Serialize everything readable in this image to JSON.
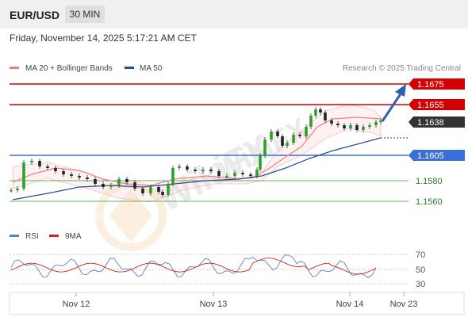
{
  "header": {
    "symbol": "EUR/USD",
    "timeframe": "30 MIN"
  },
  "datetime": "Friday, November 14, 2025 5:17:21 AM CET",
  "legend": {
    "ma20_label": "MA 20 + Bollinger Bands",
    "ma50_label": "MA 50",
    "credit": "Research © 2025 Trading Central"
  },
  "rsi_legend": {
    "rsi_label": "RSI",
    "ma_label": "9MA"
  },
  "colors": {
    "resistance": "#d40000",
    "support_blue": "#3a6fd8",
    "support_green": "#2ca02c",
    "current": "#333333",
    "ma20": "#f08080",
    "ma50": "#2a4f8f",
    "rsi": "#5b7fd6",
    "rsi_ma": "#d42020",
    "arrow": "#2f5fb0",
    "watermark": "wikifx-logo"
  },
  "chart_data": [
    {
      "type": "candlestick",
      "title": "EUR/USD",
      "x_labels": [
        "Nov 12",
        "Nov 13",
        "Nov 14",
        "Nov 23"
      ],
      "levels": [
        {
          "value": "1.1675",
          "kind": "resistance"
        },
        {
          "value": "1.1655",
          "kind": "resistance"
        },
        {
          "value": "1.1638",
          "kind": "current"
        },
        {
          "value": "1.1605",
          "kind": "support_major"
        },
        {
          "value": "1.1580",
          "kind": "support"
        },
        {
          "value": "1.1560",
          "kind": "support"
        }
      ],
      "series": [
        {
          "name": "MA 20 + Bollinger Bands",
          "approx_values": [
            1.157,
            1.1585,
            1.159,
            1.158,
            1.1575,
            1.1583,
            1.1585,
            1.1587,
            1.1595,
            1.16,
            1.1607,
            1.162,
            1.163,
            1.164,
            1.164,
            1.1638
          ]
        },
        {
          "name": "MA 50",
          "approx_values": [
            1.1561,
            1.1565,
            1.157,
            1.1572,
            1.1575,
            1.1577,
            1.158,
            1.1582,
            1.1583,
            1.1585,
            1.159,
            1.1598,
            1.1605,
            1.1613,
            1.1622,
            1.1628
          ]
        }
      ],
      "forecast": "up toward 1.1675"
    },
    {
      "type": "line",
      "title": "",
      "yticks": [
        "70",
        "50",
        "30"
      ],
      "ylim": [
        20,
        80
      ],
      "series": [
        {
          "name": "RSI"
        },
        {
          "name": "9MA"
        }
      ]
    }
  ]
}
